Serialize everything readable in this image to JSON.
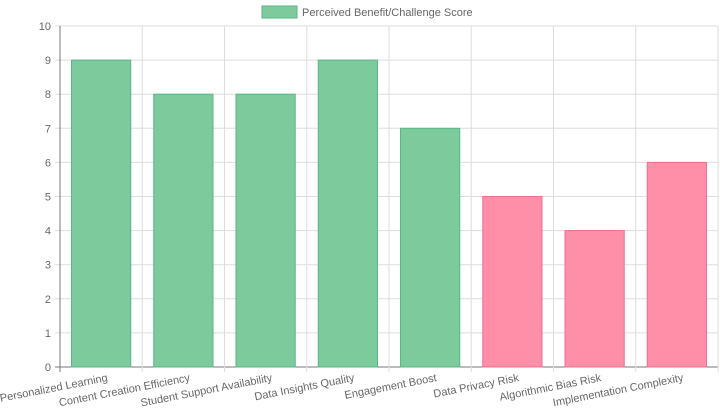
{
  "chart_data": {
    "type": "bar",
    "categories": [
      "Personalized Learning",
      "Content Creation Efficiency",
      "Student Support Availability",
      "Data Insights Quality",
      "Engagement Boost",
      "Data Privacy Risk",
      "Algorithmic Bias Risk",
      "Implementation Complexity"
    ],
    "series": [
      {
        "name": "Perceived Benefit/Challenge Score",
        "values": [
          9,
          8,
          8,
          9,
          7,
          5,
          4,
          6
        ]
      }
    ],
    "bar_groups": [
      "benefit",
      "benefit",
      "benefit",
      "benefit",
      "benefit",
      "challenge",
      "challenge",
      "challenge"
    ],
    "colors": {
      "benefit_fill": "#7dcb9d",
      "benefit_stroke": "#5bb584",
      "challenge_fill": "#ff8fa8",
      "challenge_stroke": "#ee6f8c",
      "grid": "#dddddd",
      "axis": "#777777",
      "text": "#666666"
    },
    "ylim": [
      0,
      10
    ],
    "ytick_step": 1,
    "grid": true,
    "legend_position": "top",
    "title": "",
    "xlabel": "",
    "ylabel": ""
  }
}
